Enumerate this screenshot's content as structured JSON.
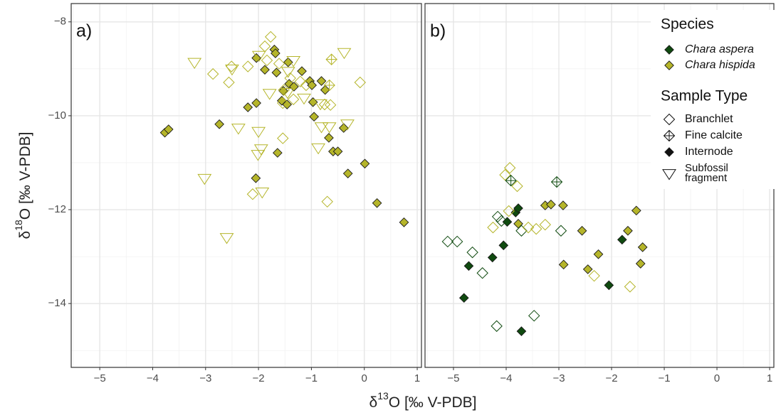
{
  "chart_data": {
    "type": "scatter",
    "xlabel": [
      "δ",
      "13",
      "O [‰ V-PDB]"
    ],
    "ylabel": [
      "δ",
      "18",
      "O [‰ V-PDB]"
    ],
    "xlim": [
      -5.54,
      1.08
    ],
    "xticks": [
      {
        "value": -5,
        "label": "−5"
      },
      {
        "value": -4,
        "label": "−4"
      },
      {
        "value": -3,
        "label": "−3"
      },
      {
        "value": -2,
        "label": "−2"
      },
      {
        "value": -1,
        "label": "−1"
      },
      0,
      1
    ],
    "ylim": [
      -15.36,
      -7.61
    ],
    "yticks": [
      {
        "value": -14,
        "label": "−14"
      },
      {
        "value": -12,
        "label": "−12"
      },
      {
        "value": -10,
        "label": "−10"
      },
      {
        "value": -8,
        "label": "−8"
      }
    ],
    "grid": true,
    "legend": {
      "species_title": "Species",
      "species": [
        {
          "name": "Chara aspera",
          "color": "#0f4a0f"
        },
        {
          "name": "Chara hispida",
          "color": "#b5b52a"
        }
      ],
      "type_title": "Sample Type",
      "types": [
        {
          "lines": [
            "Branchlet"
          ],
          "shape": "diamond-open"
        },
        {
          "lines": [
            "Fine calcite"
          ],
          "shape": "diamond-cross"
        },
        {
          "lines": [
            "Internode"
          ],
          "shape": "diamond-filled"
        },
        {
          "lines": [
            "Subfossil",
            "fragment"
          ],
          "shape": "triangle-down"
        }
      ]
    },
    "panels": [
      {
        "label": "a)",
        "series": [
          {
            "species": 1,
            "sample_type": 2,
            "x": [
              -3.77,
              -3.7,
              -2.74,
              -1.7,
              -1.68,
              -1.88,
              -1.66,
              -1.53,
              -1.42,
              -1.44,
              -1.33,
              -1.18,
              -1.03,
              -0.81,
              -0.97,
              -0.99,
              -0.95,
              -0.74,
              -0.59,
              -0.39,
              -0.67,
              -0.5,
              -0.31,
              0.01,
              0.24,
              0.75,
              -2.05,
              -1.64,
              -1.56,
              -2.04,
              -2.04,
              -2.2,
              -1.46
            ],
            "y": [
              -10.36,
              -10.29,
              -10.18,
              -8.59,
              -8.67,
              -9.02,
              -9.08,
              -9.47,
              -9.32,
              -8.86,
              -9.38,
              -9.05,
              -9.26,
              -9.26,
              -9.71,
              -9.35,
              -10.02,
              -9.45,
              -10.76,
              -10.26,
              -10.47,
              -10.76,
              -11.23,
              -11.02,
              -11.86,
              -12.27,
              -11.33,
              -10.79,
              -9.68,
              -8.77,
              -9.73,
              -9.82,
              -9.76
            ]
          },
          {
            "species": 1,
            "sample_type": 0,
            "x": [
              -1.77,
              -1.88,
              -2.86,
              -2.56,
              -2.51,
              -2.2,
              -1.84,
              -1.61,
              -1.52,
              -1.54,
              -1.4,
              -1.34,
              -1.21,
              -1.1,
              -0.75,
              -0.64,
              -0.08,
              -2.11,
              -0.7,
              -1.54
            ],
            "y": [
              -8.32,
              -8.52,
              -9.11,
              -9.29,
              -8.95,
              -8.95,
              -8.82,
              -8.89,
              -9.45,
              -9.73,
              -9.2,
              -9.65,
              -9.27,
              -9.35,
              -9.76,
              -9.77,
              -9.29,
              -11.67,
              -11.83,
              -10.48
            ]
          },
          {
            "species": 1,
            "sample_type": 1,
            "x": [
              -0.62,
              -0.66
            ],
            "y": [
              -8.8,
              -9.35
            ]
          },
          {
            "species": 1,
            "sample_type": 3,
            "x": [
              -3.21,
              -2.5,
              -1.99,
              -2.38,
              -2.0,
              -1.95,
              -1.93,
              -3.02,
              -1.34,
              -1.79,
              -1.45,
              -1.44,
              -1.14,
              -0.83,
              -0.66,
              -0.81,
              -0.32,
              -0.38,
              -2.01,
              -0.87,
              -2.6
            ],
            "y": [
              -8.86,
              -9.0,
              -8.71,
              -10.26,
              -10.33,
              -10.7,
              -11.62,
              -11.33,
              -8.82,
              -9.52,
              -9.5,
              -9.05,
              -9.62,
              -9.74,
              -10.23,
              -10.23,
              -10.17,
              -8.65,
              -10.82,
              -10.68,
              -12.59
            ]
          }
        ]
      },
      {
        "label": "b)",
        "series": [
          {
            "species": 0,
            "sample_type": 2,
            "x": [
              -4.8,
              -4.71,
              -4.26,
              -4.05,
              -3.98,
              -3.82,
              -3.77,
              -3.71,
              -2.05,
              -1.8
            ],
            "y": [
              -13.88,
              -13.2,
              -13.02,
              -12.76,
              -12.26,
              -12.06,
              -11.97,
              -14.59,
              -13.61,
              -12.64
            ]
          },
          {
            "species": 1,
            "sample_type": 2,
            "x": [
              -3.26,
              -3.15,
              -2.92,
              -2.91,
              -2.56,
              -2.45,
              -2.25,
              -1.69,
              -1.53,
              -1.45,
              -1.41,
              -3.77
            ],
            "y": [
              -11.91,
              -11.89,
              -11.91,
              -13.17,
              -12.45,
              -13.27,
              -12.95,
              -12.45,
              -12.02,
              -13.15,
              -12.8,
              -12.3
            ]
          },
          {
            "species": 0,
            "sample_type": 0,
            "x": [
              -5.11,
              -4.93,
              -4.64,
              -4.45,
              -4.16,
              -4.09,
              -3.71,
              -2.96,
              -3.47,
              -4.18
            ],
            "y": [
              -12.68,
              -12.68,
              -12.91,
              -13.35,
              -12.15,
              -12.24,
              -12.45,
              -12.45,
              -14.26,
              -14.48
            ]
          },
          {
            "species": 1,
            "sample_type": 0,
            "x": [
              -3.93,
              -4.02,
              -3.79,
              -3.58,
              -3.43,
              -3.26,
              -2.33,
              -1.65,
              -3.95,
              -4.25
            ],
            "y": [
              -11.11,
              -11.26,
              -11.5,
              -12.38,
              -12.41,
              -12.32,
              -13.41,
              -13.64,
              -12.03,
              -12.38
            ]
          },
          {
            "species": 0,
            "sample_type": 1,
            "x": [
              -3.91,
              -3.04
            ],
            "y": [
              -11.38,
              -11.41
            ]
          }
        ]
      }
    ]
  }
}
